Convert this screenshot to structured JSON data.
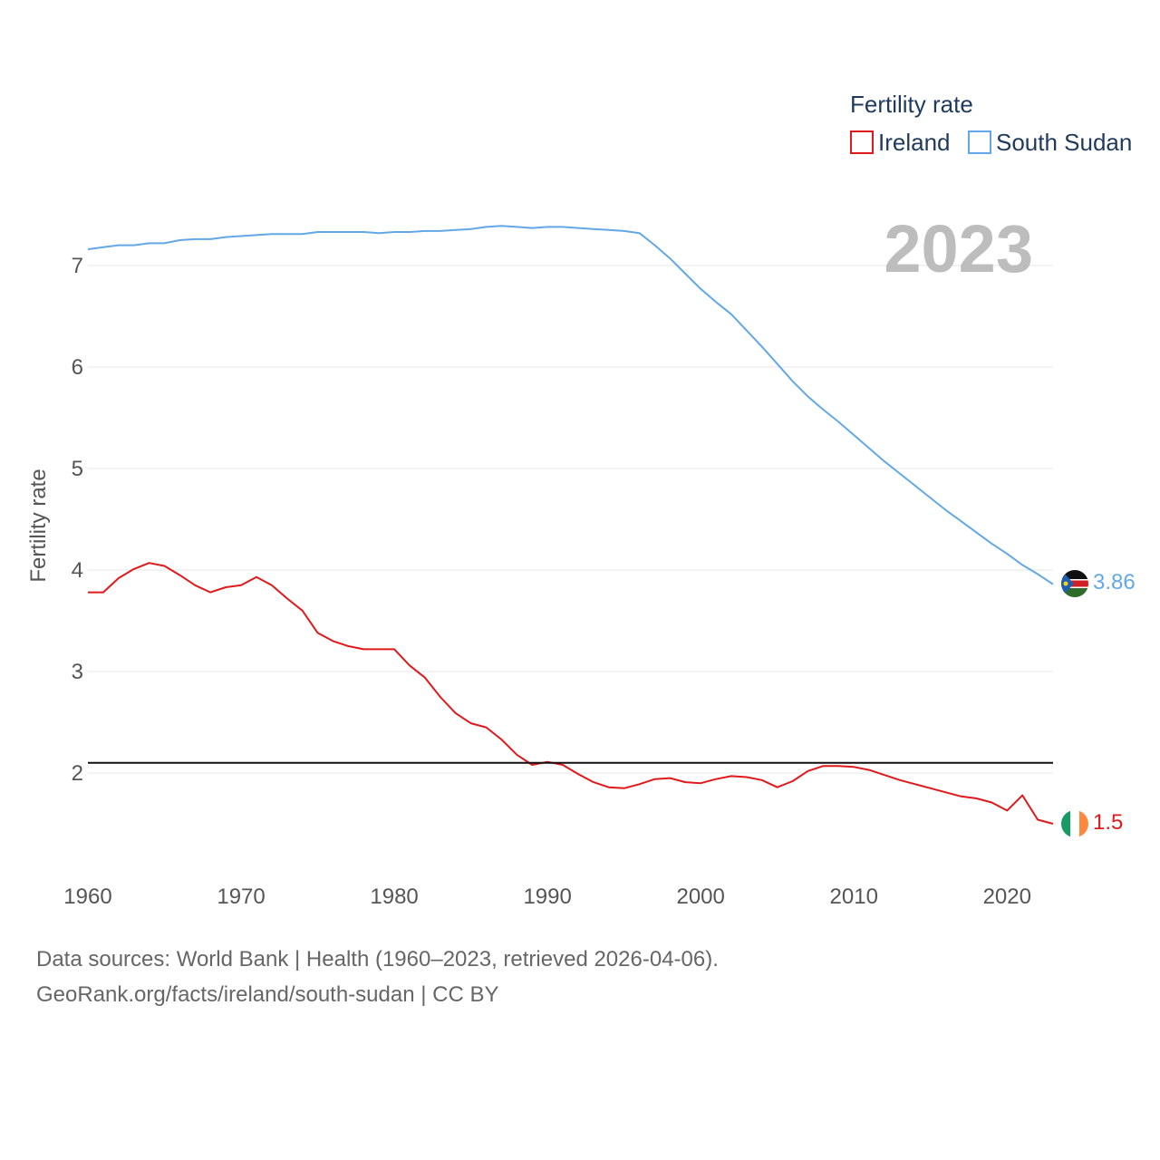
{
  "chart_data": {
    "type": "line",
    "title": "Fertility rate",
    "ylabel": "Fertility rate",
    "xlabel": "",
    "year_label": "2023",
    "xlim": [
      1960,
      2023
    ],
    "ylim": [
      1.2,
      7.7
    ],
    "x_ticks": [
      1960,
      1970,
      1980,
      1990,
      2000,
      2010,
      2020
    ],
    "y_ticks": [
      2,
      3,
      4,
      5,
      6,
      7
    ],
    "grid": true,
    "legend_position": "top-right",
    "reference_line": 2.1,
    "x": [
      1960,
      1961,
      1962,
      1963,
      1964,
      1965,
      1966,
      1967,
      1968,
      1969,
      1970,
      1971,
      1972,
      1973,
      1974,
      1975,
      1976,
      1977,
      1978,
      1979,
      1980,
      1981,
      1982,
      1983,
      1984,
      1985,
      1986,
      1987,
      1988,
      1989,
      1990,
      1991,
      1992,
      1993,
      1994,
      1995,
      1996,
      1997,
      1998,
      1999,
      2000,
      2001,
      2002,
      2003,
      2004,
      2005,
      2006,
      2007,
      2008,
      2009,
      2010,
      2011,
      2012,
      2013,
      2014,
      2015,
      2016,
      2017,
      2018,
      2019,
      2020,
      2021,
      2022,
      2023
    ],
    "series": [
      {
        "name": "Ireland",
        "color": "#e0191b",
        "end_label": "1.5",
        "flag": "ireland-flag",
        "values": [
          3.78,
          3.78,
          3.92,
          4.01,
          4.07,
          4.04,
          3.95,
          3.85,
          3.78,
          3.83,
          3.85,
          3.93,
          3.85,
          3.72,
          3.6,
          3.38,
          3.3,
          3.25,
          3.22,
          3.22,
          3.22,
          3.06,
          2.94,
          2.75,
          2.59,
          2.49,
          2.45,
          2.33,
          2.18,
          2.08,
          2.11,
          2.08,
          1.99,
          1.91,
          1.86,
          1.85,
          1.89,
          1.94,
          1.95,
          1.91,
          1.9,
          1.94,
          1.97,
          1.96,
          1.93,
          1.86,
          1.92,
          2.02,
          2.07,
          2.07,
          2.06,
          2.03,
          1.98,
          1.93,
          1.89,
          1.85,
          1.81,
          1.77,
          1.75,
          1.71,
          1.63,
          1.78,
          1.54,
          1.5
        ]
      },
      {
        "name": "South Sudan",
        "color": "#63a8e6",
        "end_label": "3.86",
        "flag": "south-sudan-flag",
        "values": [
          7.16,
          7.18,
          7.2,
          7.2,
          7.22,
          7.22,
          7.25,
          7.26,
          7.26,
          7.28,
          7.29,
          7.3,
          7.31,
          7.31,
          7.31,
          7.33,
          7.33,
          7.33,
          7.33,
          7.32,
          7.33,
          7.33,
          7.34,
          7.34,
          7.35,
          7.36,
          7.38,
          7.39,
          7.38,
          7.37,
          7.38,
          7.38,
          7.37,
          7.36,
          7.35,
          7.34,
          7.32,
          7.2,
          7.07,
          6.92,
          6.77,
          6.64,
          6.52,
          6.36,
          6.2,
          6.03,
          5.86,
          5.71,
          5.58,
          5.46,
          5.33,
          5.2,
          5.07,
          4.95,
          4.83,
          4.71,
          4.59,
          4.48,
          4.37,
          4.26,
          4.16,
          4.05,
          3.96,
          3.86
        ]
      }
    ]
  },
  "footer": {
    "line1": "Data sources: World Bank | Health (1960–2023, retrieved 2026-04-06).",
    "line2": "GeoRank.org/facts/ireland/south-sudan | CC BY"
  }
}
